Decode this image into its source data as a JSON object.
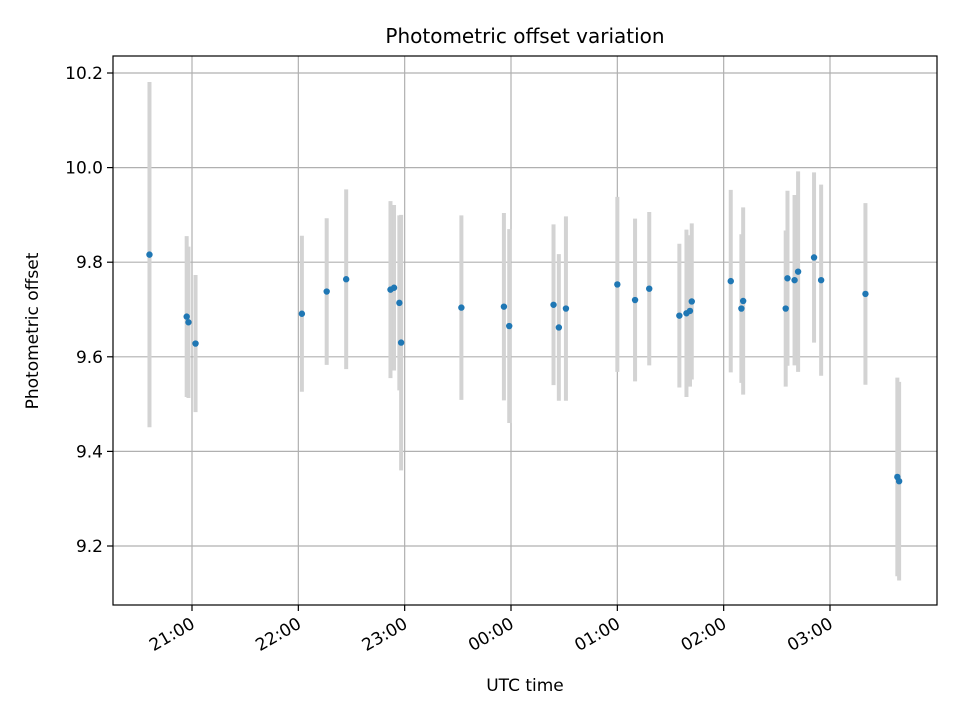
{
  "chart_data": {
    "type": "scatter",
    "title": "Photometric offset variation",
    "xlabel": "UTC time",
    "ylabel": "Photometric offset",
    "x_ticks": [
      "21:00",
      "22:00",
      "23:00",
      "00:00",
      "01:00",
      "02:00",
      "03:00"
    ],
    "y_ticks": [
      "9.2",
      "9.4",
      "9.6",
      "9.8",
      "10.0",
      "10.2"
    ],
    "ylim": [
      9.07,
      10.24
    ],
    "grid": true,
    "colors": {
      "point": "#1f77b4",
      "errorbar": "#d3d3d3",
      "grid": "#b0b0b0",
      "axis": "#000000"
    },
    "points": [
      {
        "x": "20:36",
        "y": 9.816,
        "yerr": 0.365
      },
      {
        "x": "20:57",
        "y": 9.685,
        "yerr": 0.17
      },
      {
        "x": "20:58",
        "y": 9.673,
        "yerr": 0.16
      },
      {
        "x": "21:02",
        "y": 9.628,
        "yerr": 0.145
      },
      {
        "x": "22:02",
        "y": 9.691,
        "yerr": 0.165
      },
      {
        "x": "22:16",
        "y": 9.738,
        "yerr": 0.155
      },
      {
        "x": "22:27",
        "y": 9.764,
        "yerr": 0.19
      },
      {
        "x": "22:52",
        "y": 9.742,
        "yerr": 0.187
      },
      {
        "x": "22:54",
        "y": 9.746,
        "yerr": 0.175
      },
      {
        "x": "22:57",
        "y": 9.714,
        "yerr": 0.185
      },
      {
        "x": "22:58",
        "y": 9.63,
        "yerr": 0.27
      },
      {
        "x": "23:32",
        "y": 9.704,
        "yerr": 0.195
      },
      {
        "x": "23:56",
        "y": 9.706,
        "yerr": 0.198
      },
      {
        "x": "23:59",
        "y": 9.665,
        "yerr": 0.205
      },
      {
        "x": "00:24",
        "y": 9.71,
        "yerr": 0.17
      },
      {
        "x": "00:27",
        "y": 9.662,
        "yerr": 0.155
      },
      {
        "x": "00:31",
        "y": 9.702,
        "yerr": 0.195
      },
      {
        "x": "01:00",
        "y": 9.753,
        "yerr": 0.185
      },
      {
        "x": "01:10",
        "y": 9.72,
        "yerr": 0.172
      },
      {
        "x": "01:18",
        "y": 9.744,
        "yerr": 0.162
      },
      {
        "x": "01:35",
        "y": 9.687,
        "yerr": 0.152
      },
      {
        "x": "01:39",
        "y": 9.692,
        "yerr": 0.177
      },
      {
        "x": "01:41",
        "y": 9.697,
        "yerr": 0.16
      },
      {
        "x": "01:42",
        "y": 9.717,
        "yerr": 0.165
      },
      {
        "x": "02:04",
        "y": 9.76,
        "yerr": 0.193
      },
      {
        "x": "02:10",
        "y": 9.702,
        "yerr": 0.157
      },
      {
        "x": "02:11",
        "y": 9.718,
        "yerr": 0.198
      },
      {
        "x": "02:35",
        "y": 9.702,
        "yerr": 0.165
      },
      {
        "x": "02:36",
        "y": 9.766,
        "yerr": 0.185
      },
      {
        "x": "02:40",
        "y": 9.762,
        "yerr": 0.18
      },
      {
        "x": "02:42",
        "y": 9.78,
        "yerr": 0.212
      },
      {
        "x": "02:51",
        "y": 9.81,
        "yerr": 0.18
      },
      {
        "x": "02:55",
        "y": 9.762,
        "yerr": 0.202
      },
      {
        "x": "03:20",
        "y": 9.733,
        "yerr": 0.192
      },
      {
        "x": "03:38",
        "y": 9.346,
        "yerr": 0.21
      },
      {
        "x": "03:39",
        "y": 9.337,
        "yerr": 0.21
      }
    ]
  }
}
